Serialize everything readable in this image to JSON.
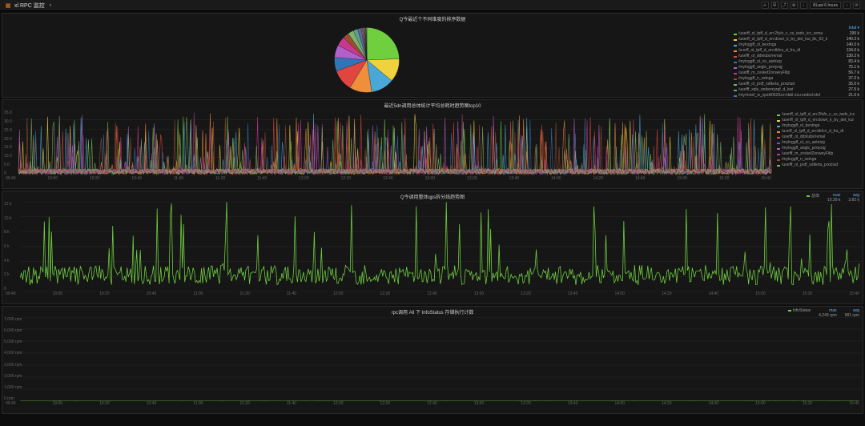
{
  "colors": {
    "background": "#0d0d0d",
    "panel_bg": "#161616",
    "panel_border": "#2a2a2a",
    "grid": "#2a2a2a",
    "text": "#cccccc",
    "text_dim": "#777777",
    "accent": "#5bb1ff"
  },
  "header": {
    "dashboard_title": "xl RPC 监控",
    "time_range_label": "Last 6 hours",
    "icons": [
      "add",
      "panel",
      "dash",
      "settings",
      "chevron-left",
      "chevron-right",
      "refresh"
    ]
  },
  "panel_pie": {
    "title": "Q今最近个不同维度的排序数据",
    "type": "pie",
    "slices": [
      {
        "label": "/userff_ol_tpff_d_en:2fy/n_c_xs_iwdv_icc_rema",
        "value": 295,
        "value_str": "295 k",
        "color": "#6fcf3f"
      },
      {
        "label": "/userff_ol_tpff_d_en:down_k_by_det_kui_bk_52_k",
        "value": 140,
        "value_str": "140.2 k",
        "color": "#f2d13e"
      },
      {
        "label": "/myloggff_ol_bextnga",
        "value": 140,
        "value_str": "140.0 k",
        "color": "#4aa8d8"
      },
      {
        "label": "/a:erff_ol_tpff_d_en:dkfcn_d_fru_dl",
        "value": 135,
        "value_str": "134.6 k",
        "color": "#ef8e3b"
      },
      {
        "label": "/usefff_ol_ddnlubx/remal",
        "value": 130,
        "value_str": "130.2 k",
        "color": "#e0463f"
      },
      {
        "label": "/myloggff_ol_co_aetnizg",
        "value": 83,
        "value_str": "83.4 k",
        "color": "#3274b8"
      },
      {
        "label": "/myloggff_angls_prxiyzqj",
        "value": 75,
        "value_str": "75.1 k",
        "color": "#b15fc9"
      },
      {
        "label": "/usefff_m_zvxkefZonweyFitlp",
        "value": 56,
        "value_str": "56.7 k",
        "color": "#c7398f"
      },
      {
        "label": "/myloggff_n_sstnga",
        "value": 37,
        "value_str": "37.0 k",
        "color": "#9a4d2f"
      },
      {
        "label": "/usefff_ol_prdf_xdiketa_prxiziud",
        "value": 35,
        "value_str": "35.0 k",
        "color": "#7fb36b"
      },
      {
        "label": "/usefff_xqls_ondenryzgf_d_lwd",
        "value": 27,
        "value_str": "27.5 k",
        "color": "#5fa08e"
      },
      {
        "label": "/myrlonef_w_vpzkl0620zo-kbbl-zzu:zeded:skd",
        "value": 21,
        "value_str": "21.0 k",
        "color": "#4d6fa0"
      }
    ],
    "extra_thin_slices": [
      {
        "color": "#d05a2e",
        "value": 8
      },
      {
        "color": "#8e5fc0",
        "value": 6
      },
      {
        "color": "#4fb8a0",
        "value": 5
      },
      {
        "color": "#d84aa8",
        "value": 4
      },
      {
        "color": "#6fa84a",
        "value": 4
      },
      {
        "color": "#4a6fd8",
        "value": 3
      },
      {
        "color": "#a8d84a",
        "value": 3
      },
      {
        "color": "#d8a84a",
        "value": 2
      }
    ]
  },
  "panel_ts1": {
    "title": "最近5dn调用总体统计平均总耗时趋势图top10",
    "type": "line",
    "ylim": [
      0,
      35
    ],
    "ytick_step": 5,
    "ylabels": [
      "0",
      "5.0",
      "10.0",
      "15.0",
      "20.0",
      "25.0",
      "30.0",
      "35.0"
    ],
    "xlabels_every": "30min",
    "series": [
      {
        "label": "/userff_ol_tpff_d_en:2fofn_c_xs_iwdv_icc",
        "color": "#6fcf3f"
      },
      {
        "label": "/userff_ol_tpff_d_en:down_k_by_det_kui",
        "color": "#f2d13e"
      },
      {
        "label": "/myloggff_ol_bextnga",
        "color": "#4aa8d8"
      },
      {
        "label": "/a:erff_ol_tpff_d_en:dkfcn_d_fru_dl",
        "color": "#ef8e3b"
      },
      {
        "label": "/usefff_ol_ddnlubx/remal",
        "color": "#e0463f"
      },
      {
        "label": "/myloggff_ol_co_aetnizg",
        "color": "#3274b8"
      },
      {
        "label": "/myloggff_angls_prxiyzqj",
        "color": "#b15fc9"
      },
      {
        "label": "/usefff_m_zvxkefZonweyFitlp",
        "color": "#c7398f"
      },
      {
        "label": "/myloggff_n_sstnga",
        "color": "#9a4d2f"
      },
      {
        "label": "/usefff_ol_prdf_xdiketa_prxiziud",
        "color": "#7fb36b"
      }
    ],
    "baseline": 2.5,
    "spike_rate": 0.08,
    "spike_max": 30
  },
  "panel_ts2": {
    "title": "Q今调用整体qps拆分线趋势图",
    "type": "line",
    "ylim": [
      0,
      12
    ],
    "ylabels": [
      "0",
      "2 k",
      "4 k",
      "6 k",
      "8 k",
      "10 k",
      "12 k"
    ],
    "summary": {
      "label": "总体",
      "max": "10.39 k",
      "avg": "3.82 k"
    },
    "series": [
      {
        "label": "总体",
        "color": "#6fcf3f"
      }
    ],
    "baseline": 2.2,
    "spike_rate": 0.06,
    "spike_max": 10
  },
  "panel_ts3": {
    "title": "rpc调用 All 下 InfoStatus 存储执行计数",
    "type": "line",
    "ylim": [
      0,
      7000
    ],
    "ylabels": [
      "0 rpm",
      "1,000 rpm",
      "2,000 rpm",
      "3,000 rpm",
      "4,000 rpm",
      "5,000 rpm",
      "6,000 rpm",
      "7,000 rpm"
    ],
    "summary": {
      "label": "InfoStatus",
      "max": "4,249 rpm",
      "avg": "981 rpm"
    },
    "series": [
      {
        "label": "InfoStatus",
        "color": "#6fcf3f"
      }
    ],
    "baseline": 1.5,
    "spike_rate": 0.07,
    "spike_max": 5.5
  },
  "time_axis": {
    "start_hr": 9,
    "start_min": 40,
    "end_hr": 15,
    "end_min": 40,
    "step_min": 10
  }
}
